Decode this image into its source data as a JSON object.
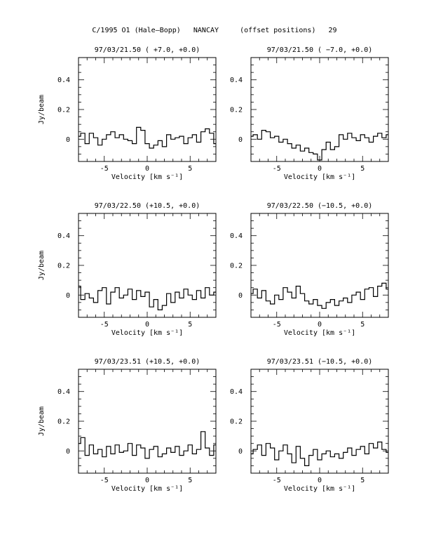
{
  "page": {
    "title": "C/1995 O1 (Hale–Bopp)   NANCAY     (offset positions)   29"
  },
  "chart_data": [
    {
      "type": "line",
      "title": "97/03/21.50  ( +7.0, +0.0)",
      "xlabel": "Velocity [km s⁻¹]",
      "ylabel": "Jy/beam",
      "xlim": [
        -8,
        8
      ],
      "ylim": [
        -0.15,
        0.55
      ],
      "xticks": [
        "-5",
        "0",
        "5"
      ],
      "yticks": [
        "0",
        "0.2",
        "0.4"
      ],
      "series": [
        {
          "x_start": -8,
          "x_step": 0.5,
          "values": [
            0.02,
            0.04,
            -0.03,
            0.04,
            0.01,
            -0.04,
            0.0,
            0.03,
            0.05,
            0.01,
            0.03,
            0.0,
            -0.01,
            -0.03,
            0.08,
            0.06,
            -0.03,
            -0.06,
            -0.04,
            -0.01,
            -0.05,
            0.03,
            0.0,
            0.01,
            0.02,
            -0.03,
            0.01,
            0.03,
            -0.02,
            0.05,
            0.07,
            0.04,
            -0.03
          ]
        }
      ]
    },
    {
      "type": "line",
      "title": "97/03/21.50  ( −7.0, +0.0)",
      "xlabel": "Velocity [km s⁻¹]",
      "ylabel": "",
      "xlim": [
        -8,
        8
      ],
      "ylim": [
        -0.15,
        0.55
      ],
      "xticks": [
        "-5",
        "0",
        "5"
      ],
      "yticks": [
        "0",
        "0.2",
        "0.4"
      ],
      "series": [
        {
          "x_start": -8,
          "x_step": 0.5,
          "values": [
            0.02,
            0.03,
            0.0,
            0.06,
            0.05,
            0.01,
            0.02,
            -0.02,
            0.0,
            -0.03,
            -0.06,
            -0.04,
            -0.08,
            -0.06,
            -0.09,
            -0.1,
            -0.14,
            -0.07,
            -0.02,
            -0.07,
            -0.05,
            0.03,
            0.0,
            0.04,
            0.01,
            -0.01,
            0.03,
            0.01,
            -0.02,
            0.02,
            0.04,
            0.01,
            0.03
          ]
        }
      ]
    },
    {
      "type": "line",
      "title": "97/03/22.50  (+10.5, +0.0)",
      "xlabel": "Velocity [km s⁻¹]",
      "ylabel": "Jy/beam",
      "xlim": [
        -8,
        8
      ],
      "ylim": [
        -0.15,
        0.55
      ],
      "xticks": [
        "-5",
        "0",
        "5"
      ],
      "yticks": [
        "0",
        "0.2",
        "0.4"
      ],
      "series": [
        {
          "x_start": -8,
          "x_step": 0.5,
          "values": [
            0.06,
            -0.03,
            0.01,
            -0.02,
            -0.05,
            0.03,
            0.05,
            -0.06,
            0.02,
            0.05,
            -0.02,
            0.0,
            0.04,
            -0.03,
            0.03,
            -0.01,
            0.02,
            -0.08,
            -0.03,
            -0.1,
            -0.07,
            0.01,
            -0.05,
            0.02,
            -0.02,
            0.04,
            0.0,
            -0.03,
            0.03,
            -0.02,
            0.05,
            0.0,
            0.02
          ]
        }
      ]
    },
    {
      "type": "line",
      "title": "97/03/22.50  (−10.5, +0.0)",
      "xlabel": "Velocity [km s⁻¹]",
      "ylabel": "",
      "xlim": [
        -8,
        8
      ],
      "ylim": [
        -0.15,
        0.55
      ],
      "xticks": [
        "-5",
        "0",
        "5"
      ],
      "yticks": [
        "0",
        "0.2",
        "0.4"
      ],
      "series": [
        {
          "x_start": -8,
          "x_step": 0.5,
          "values": [
            0.01,
            0.04,
            -0.02,
            0.03,
            -0.04,
            -0.06,
            0.0,
            -0.03,
            0.05,
            0.02,
            -0.02,
            0.06,
            0.01,
            -0.04,
            -0.06,
            -0.03,
            -0.07,
            -0.09,
            -0.05,
            -0.03,
            -0.07,
            -0.04,
            -0.02,
            -0.05,
            0.0,
            0.02,
            -0.03,
            0.04,
            0.05,
            -0.01,
            0.06,
            0.08,
            0.04
          ]
        }
      ]
    },
    {
      "type": "line",
      "title": "97/03/23.51  (+10.5, +0.0)",
      "xlabel": "Velocity [km s⁻¹]",
      "ylabel": "Jy/beam",
      "xlim": [
        -8,
        8
      ],
      "ylim": [
        -0.15,
        0.55
      ],
      "xticks": [
        "-5",
        "0",
        "5"
      ],
      "yticks": [
        "0",
        "0.2",
        "0.4"
      ],
      "series": [
        {
          "x_start": -8,
          "x_step": 0.5,
          "values": [
            0.05,
            0.09,
            -0.03,
            0.04,
            -0.02,
            0.01,
            -0.04,
            0.03,
            -0.02,
            0.04,
            -0.01,
            0.0,
            0.05,
            -0.03,
            0.04,
            0.02,
            -0.05,
            0.01,
            0.03,
            -0.04,
            -0.02,
            0.02,
            -0.01,
            0.03,
            -0.03,
            0.0,
            0.04,
            -0.02,
            0.01,
            0.13,
            0.02,
            -0.03,
            0.04
          ]
        }
      ]
    },
    {
      "type": "line",
      "title": "97/03/23.51  (−10.5, +0.0)",
      "xlabel": "Velocity [km s⁻¹]",
      "ylabel": "",
      "xlim": [
        -8,
        8
      ],
      "ylim": [
        -0.15,
        0.55
      ],
      "xticks": [
        "-5",
        "0",
        "5"
      ],
      "yticks": [
        "0",
        "0.2",
        "0.4"
      ],
      "series": [
        {
          "x_start": -8,
          "x_step": 0.5,
          "values": [
            -0.02,
            0.01,
            0.04,
            -0.03,
            0.05,
            0.02,
            -0.06,
            0.0,
            0.04,
            -0.02,
            -0.08,
            0.03,
            -0.05,
            -0.1,
            -0.03,
            0.01,
            -0.06,
            -0.02,
            0.0,
            -0.04,
            -0.02,
            -0.05,
            -0.01,
            0.02,
            -0.03,
            0.01,
            0.03,
            -0.02,
            0.05,
            0.02,
            0.06,
            0.01,
            -0.01
          ]
        }
      ]
    }
  ]
}
